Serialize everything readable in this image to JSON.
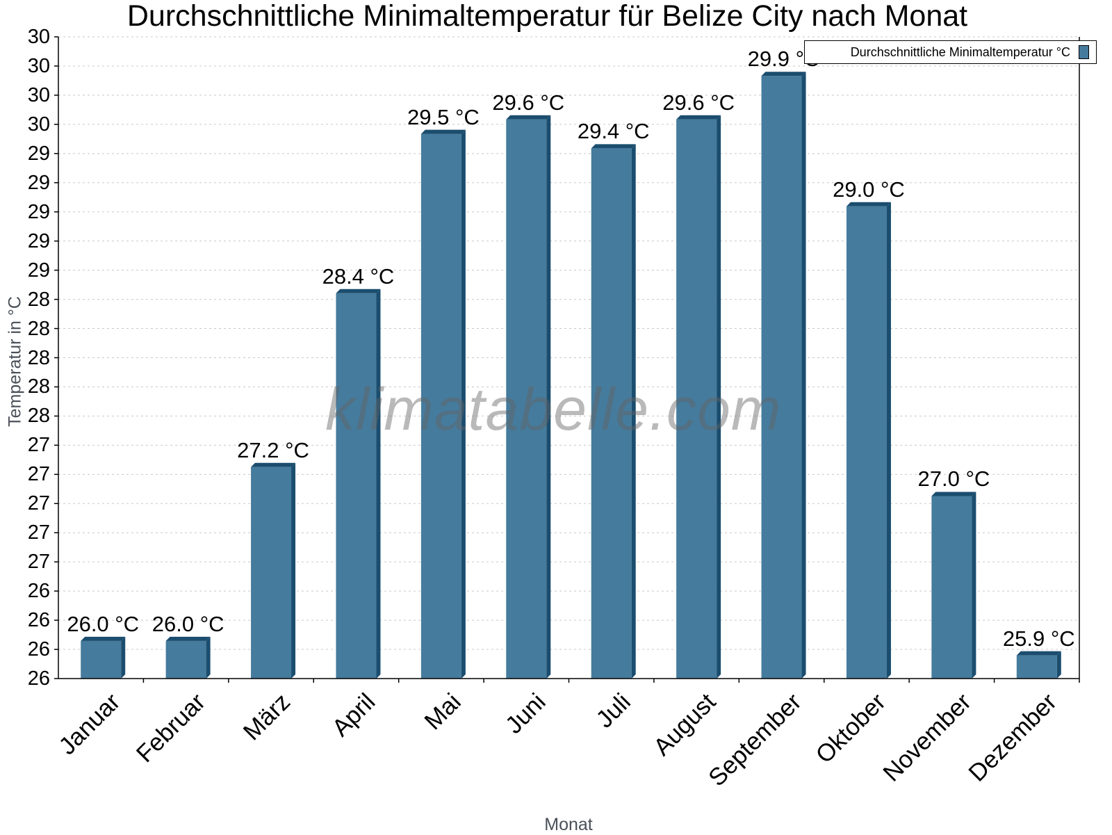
{
  "chart_data": {
    "type": "bar",
    "title": "Durchschnittliche Minimaltemperatur für Belize City nach Monat",
    "xlabel": "Monat",
    "ylabel": "Temperatur in °C",
    "categories": [
      "Januar",
      "Februar",
      "März",
      "April",
      "Mai",
      "Juni",
      "Juli",
      "August",
      "September",
      "Oktober",
      "November",
      "Dezember"
    ],
    "series": [
      {
        "name": "Durchschnittliche Minimaltemperatur °C",
        "values": [
          26.0,
          26.0,
          27.2,
          28.4,
          29.5,
          29.6,
          29.4,
          29.6,
          29.9,
          29.0,
          27.0,
          25.9
        ],
        "color": "#457b9d"
      }
    ],
    "value_labels": [
      "26.0 °C",
      "26.0 °C",
      "27.2 °C",
      "28.4 °C",
      "29.5 °C",
      "29.6 °C",
      "29.4 °C",
      "29.6 °C",
      "29.9 °C",
      "29.0 °C",
      "27.0 °C",
      "25.9 °C"
    ],
    "ytick_labels": [
      "30",
      "30",
      "30",
      "30",
      "29",
      "29",
      "29",
      "29",
      "29",
      "28",
      "28",
      "28",
      "28",
      "28",
      "27",
      "27",
      "27",
      "27",
      "27",
      "26",
      "26",
      "26",
      "26"
    ],
    "ylim": [
      25.74,
      30.17
    ],
    "grid": true,
    "legend_position": "top-right",
    "watermark": "klimatabelle.com"
  },
  "colors": {
    "bar_front": "#457b9d",
    "bar_side": "#1b4d6e",
    "grid": "#c8c8c8"
  }
}
